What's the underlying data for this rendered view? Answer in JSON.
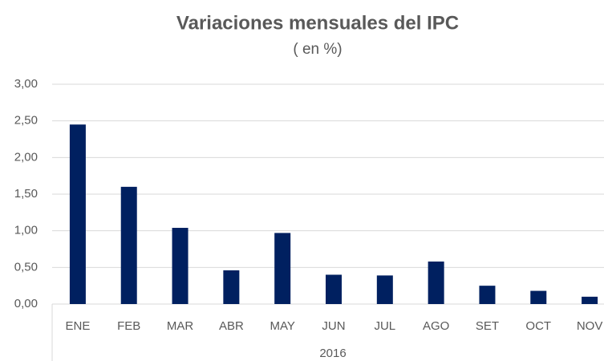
{
  "chart_data": {
    "type": "bar",
    "title": "Variaciones mensuales del IPC",
    "subtitle": "( en %)",
    "categories": [
      "ENE",
      "FEB",
      "MAR",
      "ABR",
      "MAY",
      "JUN",
      "JUL",
      "AGO",
      "SET",
      "OCT",
      "NOV"
    ],
    "values": [
      2.45,
      1.6,
      1.04,
      0.46,
      0.97,
      0.4,
      0.39,
      0.58,
      0.25,
      0.18,
      0.1
    ],
    "color": "#002060",
    "xlabel": "2016",
    "ylim": [
      0,
      3
    ],
    "yticks": [
      {
        "value": 0,
        "label": "0,00"
      },
      {
        "value": 0.5,
        "label": "0,50"
      },
      {
        "value": 1,
        "label": "1,00"
      },
      {
        "value": 1.5,
        "label": "1,50"
      },
      {
        "value": 2,
        "label": "2,00"
      },
      {
        "value": 2.5,
        "label": "2,50"
      },
      {
        "value": 3,
        "label": "3,00"
      }
    ],
    "grid": true
  }
}
